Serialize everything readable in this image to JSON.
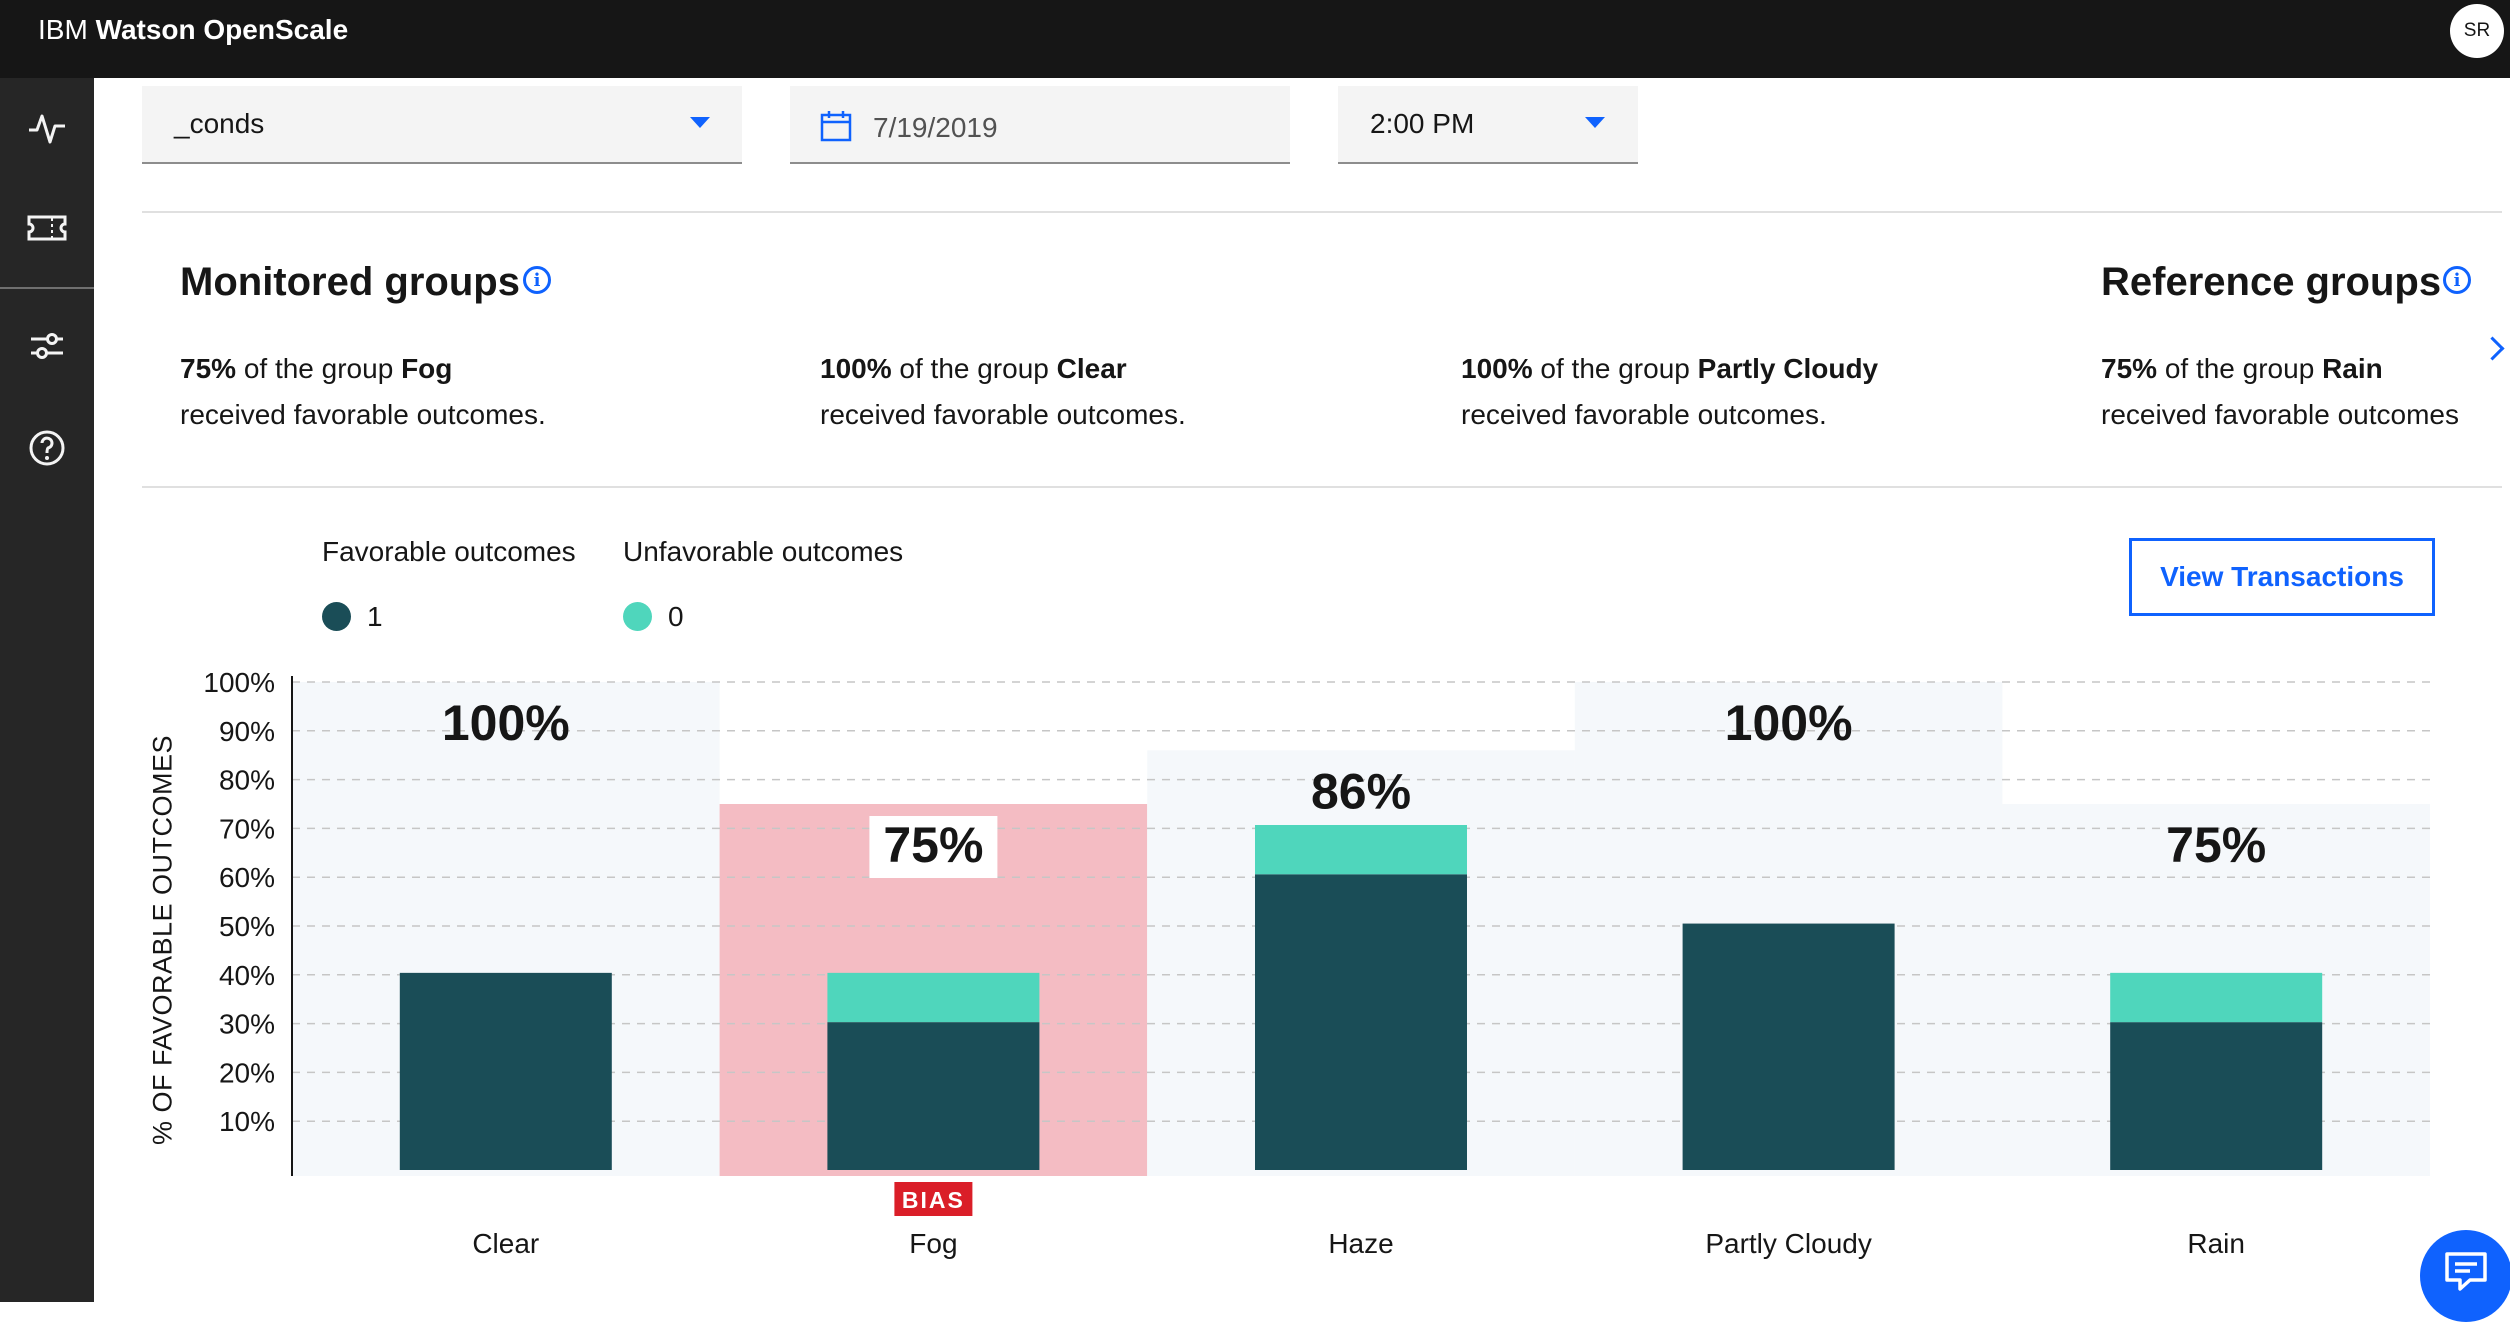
{
  "app": {
    "brand_prefix": "IBM",
    "brand_name": "Watson OpenScale",
    "user_initials": "SR"
  },
  "sidenav": {
    "items": [
      "activity-icon",
      "ticket-icon",
      "settings-adjust-icon",
      "help-icon"
    ]
  },
  "filters": {
    "feature": {
      "value": "_conds"
    },
    "date": {
      "value": "7/19/2019"
    },
    "time": {
      "value": "2:00 PM"
    }
  },
  "monitored": {
    "title": "Monitored groups",
    "groups": [
      {
        "pct": "75%",
        "pre": " of the group ",
        "name": "Fog",
        "line2": "received favorable outcomes."
      },
      {
        "pct": "100%",
        "pre": " of the group ",
        "name": "Clear",
        "line2": "received favorable outcomes."
      },
      {
        "pct": "100%",
        "pre": " of the group ",
        "name": "Partly Cloudy",
        "line2": "received favorable outcomes."
      }
    ]
  },
  "reference": {
    "title": "Reference groups",
    "groups": [
      {
        "pct": "75%",
        "pre": " of the group ",
        "name": "Rain",
        "line2": "received favorable outcomes"
      }
    ]
  },
  "legend": {
    "favorable": {
      "title": "Favorable outcomes",
      "value": "1",
      "color": "#1a4d57"
    },
    "unfavorable": {
      "title": "Unfavorable outcomes",
      "value": "0",
      "color": "#4fd6bc"
    }
  },
  "actions": {
    "view_transactions": "View Transactions"
  },
  "chart_data": {
    "type": "bar",
    "ylabel": "% OF FAVORABLE OUTCOMES",
    "yticks": [
      "10%",
      "20%",
      "30%",
      "40%",
      "50%",
      "60%",
      "70%",
      "80%",
      "90%",
      "100%"
    ],
    "ylim": [
      0,
      100
    ],
    "categories": [
      "Clear",
      "Fog",
      "Haze",
      "Partly Cloudy",
      "Rain"
    ],
    "favorable_rate": [
      100,
      75,
      86,
      100,
      75
    ],
    "rate_labels": [
      "100%",
      "75%",
      "86%",
      "100%",
      "75%"
    ],
    "favorable_count": [
      4,
      3,
      6,
      5,
      3
    ],
    "unfavorable_count": [
      0,
      1,
      1,
      0,
      1
    ],
    "bias_flag": [
      false,
      true,
      false,
      false,
      false
    ],
    "bias_label": "BIAS",
    "colors": {
      "favorable": "#1a4d57",
      "unfavorable": "#4fd6bc",
      "group_bg": "#f5f8fb",
      "bias_bg": "#f4bcc3",
      "bias_badge": "#da1e28"
    }
  }
}
